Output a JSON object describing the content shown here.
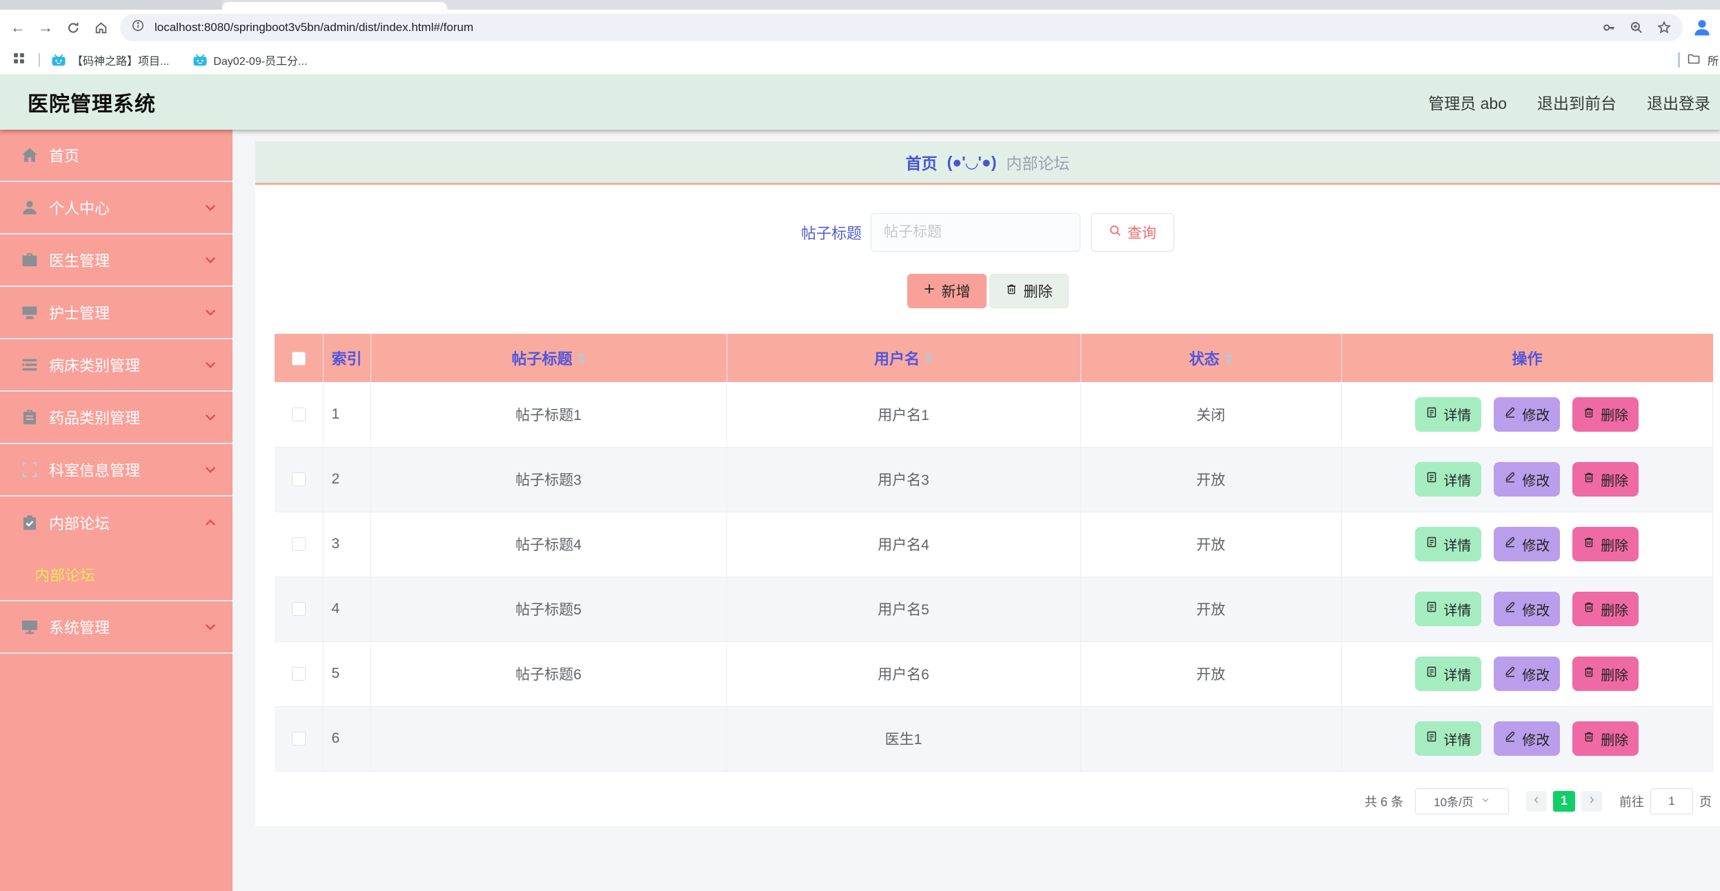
{
  "browser": {
    "url": "localhost:8080/springboot3v5bn/admin/dist/index.html#/forum",
    "bookmarks": [
      {
        "label": "【码神之路】项目..."
      },
      {
        "label": "Day02-09-员工分..."
      }
    ],
    "all_bookmarks_label": "所"
  },
  "header": {
    "title": "医院管理系统",
    "user": "管理员 abo",
    "exit_front": "退出到前台",
    "logout": "退出登录"
  },
  "sidebar": {
    "items": [
      {
        "name": "home",
        "label": "首页",
        "icon": "home-icon",
        "chevron": ""
      },
      {
        "name": "profile",
        "label": "个人中心",
        "icon": "user-icon",
        "chevron": "down"
      },
      {
        "name": "doctor",
        "label": "医生管理",
        "icon": "briefcase-icon",
        "chevron": "down"
      },
      {
        "name": "nurse",
        "label": "护士管理",
        "icon": "platform-icon",
        "chevron": "down"
      },
      {
        "name": "bed-category",
        "label": "病床类别管理",
        "icon": "list-icon",
        "chevron": "down"
      },
      {
        "name": "drug-category",
        "label": "药品类别管理",
        "icon": "clipboard-icon",
        "chevron": "down"
      },
      {
        "name": "department",
        "label": "科室信息管理",
        "icon": "fullscreen-icon",
        "chevron": "down"
      },
      {
        "name": "forum",
        "label": "内部论坛",
        "icon": "clipboard-check-icon",
        "chevron": "up",
        "submenu": [
          {
            "name": "forum-sub",
            "label": "内部论坛",
            "active": true
          }
        ]
      },
      {
        "name": "system",
        "label": "系统管理",
        "icon": "monitor-icon",
        "chevron": "down"
      }
    ]
  },
  "breadcrumb": {
    "home": "首页",
    "separator": "(●'◡'●)",
    "current": "内部论坛"
  },
  "search": {
    "label": "帖子标题",
    "placeholder": "帖子标题",
    "query": "查询"
  },
  "actions": {
    "add": "新增",
    "delete": "删除"
  },
  "table": {
    "headers": [
      {
        "label": "索引",
        "sortable": false
      },
      {
        "label": "帖子标题",
        "sortable": true
      },
      {
        "label": "用户名",
        "sortable": true
      },
      {
        "label": "状态",
        "sortable": true
      },
      {
        "label": "操作",
        "sortable": false
      }
    ],
    "rows": [
      {
        "index": "1",
        "title": "帖子标题1",
        "username": "用户名1",
        "status": "关闭"
      },
      {
        "index": "2",
        "title": "帖子标题3",
        "username": "用户名3",
        "status": "开放"
      },
      {
        "index": "3",
        "title": "帖子标题4",
        "username": "用户名4",
        "status": "开放"
      },
      {
        "index": "4",
        "title": "帖子标题5",
        "username": "用户名5",
        "status": "开放"
      },
      {
        "index": "5",
        "title": "帖子标题6",
        "username": "用户名6",
        "status": "开放"
      },
      {
        "index": "6",
        "title": "",
        "username": "医生1",
        "status": ""
      }
    ],
    "row_actions": {
      "detail": "详情",
      "edit": "修改",
      "delete": "删除"
    }
  },
  "pagination": {
    "total": "共 6 条",
    "page_size": "10条/页",
    "page": "1",
    "goto": "前往",
    "goto_value": "1",
    "unit": "页"
  },
  "colors": {
    "sidebar": "#f9a099",
    "header_bg": "#dfeee4",
    "breadcrumb_bg": "#e1efe7",
    "table_header_bg": "#f9aba0",
    "table_header_text": "#5156dd",
    "active_page": "#13ce66",
    "detail_btn": "#a5edc1",
    "edit_btn": "#bb9eeb",
    "delete_btn": "#ef6aa4",
    "query_text": "#f56c6c",
    "submenu_active": "#f0e65a"
  }
}
